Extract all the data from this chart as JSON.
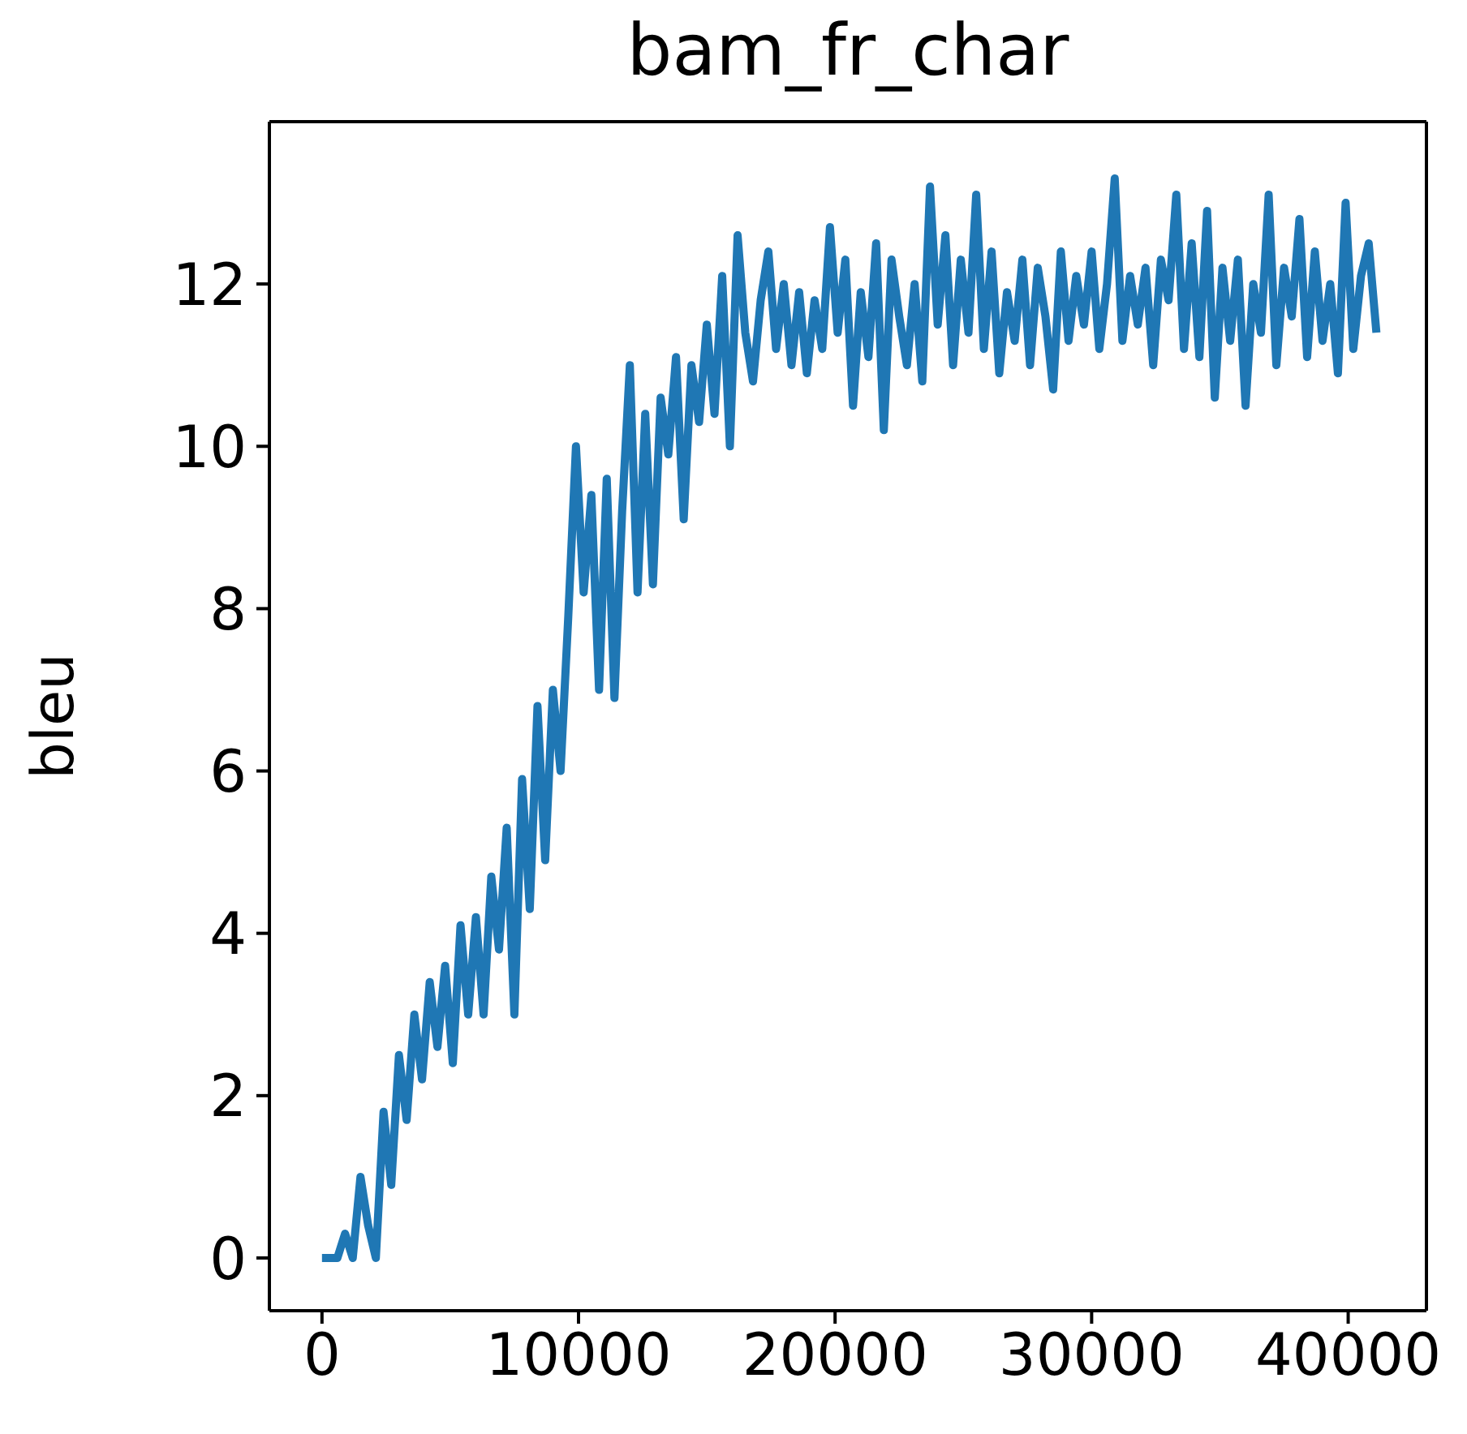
{
  "chart_data": {
    "type": "line",
    "title": "bam_fr_char",
    "ylabel": "bleu",
    "x": [
      0,
      300,
      600,
      900,
      1200,
      1500,
      1800,
      2100,
      2400,
      2700,
      3000,
      3300,
      3600,
      3900,
      4200,
      4500,
      4800,
      5100,
      5400,
      5700,
      6000,
      6300,
      6600,
      6900,
      7200,
      7500,
      7800,
      8100,
      8400,
      8700,
      9000,
      9300,
      9600,
      9900,
      10200,
      10500,
      10800,
      11100,
      11400,
      11700,
      12000,
      12300,
      12600,
      12900,
      13200,
      13500,
      13800,
      14100,
      14400,
      14700,
      15000,
      15300,
      15600,
      15900,
      16200,
      16500,
      16800,
      17100,
      17400,
      17700,
      18000,
      18300,
      18600,
      18900,
      19200,
      19500,
      19800,
      20100,
      20400,
      20700,
      21000,
      21300,
      21600,
      21900,
      22200,
      22500,
      22800,
      23100,
      23400,
      23700,
      24000,
      24300,
      24600,
      24900,
      25200,
      25500,
      25800,
      26100,
      26400,
      26700,
      27000,
      27300,
      27600,
      27900,
      28200,
      28500,
      28800,
      29100,
      29400,
      29700,
      30000,
      30300,
      30600,
      30900,
      31200,
      31500,
      31800,
      32100,
      32400,
      32700,
      33000,
      33300,
      33600,
      33900,
      34200,
      34500,
      34800,
      35100,
      35400,
      35700,
      36000,
      36300,
      36600,
      36900,
      37200,
      37500,
      37800,
      38100,
      38400,
      38700,
      39000,
      39300,
      39600,
      39900,
      40200,
      40500,
      40800,
      41100
    ],
    "series": [
      {
        "color": "#1f77b4",
        "values": [
          0,
          0,
          0,
          0.3,
          0,
          1.0,
          0.4,
          0,
          1.8,
          0.9,
          2.5,
          1.7,
          3.0,
          2.2,
          3.4,
          2.6,
          3.6,
          2.4,
          4.1,
          3.0,
          4.2,
          3.0,
          4.7,
          3.8,
          5.3,
          3.0,
          5.9,
          4.3,
          6.8,
          4.9,
          7.0,
          6.0,
          7.9,
          10.0,
          8.2,
          9.4,
          7.0,
          9.6,
          6.9,
          9.2,
          11.0,
          8.2,
          10.4,
          8.3,
          10.6,
          9.9,
          11.1,
          9.1,
          11.0,
          10.3,
          11.5,
          10.4,
          12.1,
          10.0,
          12.6,
          11.4,
          10.8,
          11.8,
          12.4,
          11.2,
          12.0,
          11.0,
          11.9,
          10.9,
          11.8,
          11.2,
          12.7,
          11.4,
          12.3,
          10.5,
          11.9,
          11.1,
          12.5,
          10.2,
          12.3,
          11.6,
          11.0,
          12.0,
          10.8,
          13.2,
          11.5,
          12.6,
          11.0,
          12.3,
          11.4,
          13.1,
          11.2,
          12.4,
          10.9,
          11.9,
          11.3,
          12.3,
          11.0,
          12.2,
          11.6,
          10.7,
          12.4,
          11.3,
          12.1,
          11.5,
          12.4,
          11.2,
          12.0,
          13.3,
          11.3,
          12.1,
          11.5,
          12.2,
          11.0,
          12.3,
          11.8,
          13.1,
          11.2,
          12.5,
          11.1,
          12.9,
          10.6,
          12.2,
          11.3,
          12.3,
          10.5,
          12.0,
          11.4,
          13.1,
          11.0,
          12.2,
          11.6,
          12.8,
          11.1,
          12.4,
          11.3,
          12.0,
          10.9,
          13.0,
          11.2,
          12.1,
          12.5,
          11.4
        ]
      }
    ],
    "xlim": [
      -2050,
      43050
    ],
    "xticks": [
      0,
      10000,
      20000,
      30000,
      40000
    ],
    "ylim": [
      -0.65,
      14.0
    ],
    "yticks": [
      0,
      2,
      4,
      6,
      8,
      10,
      12
    ],
    "grid": false,
    "legend": false,
    "marker": "none",
    "line_style": "solid"
  }
}
